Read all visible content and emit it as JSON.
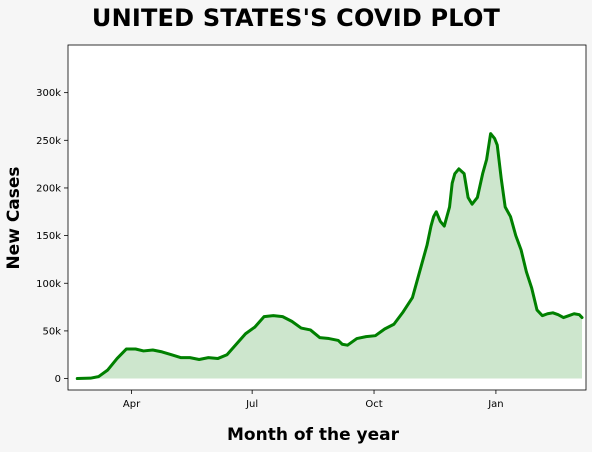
{
  "chart_data": {
    "type": "area",
    "title": "UNITED STATES'S COVID PLOT",
    "xlabel": "Month of the year",
    "ylabel": "New Cases",
    "x_tick_labels": [
      "Apr",
      "Jul",
      "Oct",
      "Jan"
    ],
    "y_tick_labels": [
      "0",
      "50k",
      "100k",
      "150k",
      "200k",
      "250k",
      "300k"
    ],
    "y_ticks": [
      0,
      50000,
      100000,
      150000,
      200000,
      250000,
      300000
    ],
    "ylim": [
      -12000,
      350000
    ],
    "xlim": [
      "2020-02-13",
      "2021-03-10"
    ],
    "x_ticks": [
      "2020-04-01",
      "2020-07-01",
      "2020-10-01",
      "2021-01-01"
    ],
    "grid": false,
    "line_color": "#008000",
    "fill_color": "#cde6cd",
    "series": [
      {
        "x": [
          "2020-02-20",
          "2020-03-01",
          "2020-03-07",
          "2020-03-14",
          "2020-03-21",
          "2020-03-28",
          "2020-04-04",
          "2020-04-10",
          "2020-04-17",
          "2020-04-24",
          "2020-05-01",
          "2020-05-08",
          "2020-05-15",
          "2020-05-22",
          "2020-05-29",
          "2020-06-05",
          "2020-06-12",
          "2020-06-19",
          "2020-06-26",
          "2020-07-03",
          "2020-07-10",
          "2020-07-17",
          "2020-07-24",
          "2020-07-31",
          "2020-08-07",
          "2020-08-14",
          "2020-08-21",
          "2020-08-28",
          "2020-09-04",
          "2020-09-07",
          "2020-09-11",
          "2020-09-18",
          "2020-09-25",
          "2020-10-02",
          "2020-10-09",
          "2020-10-16",
          "2020-10-23",
          "2020-10-30",
          "2020-11-06",
          "2020-11-10",
          "2020-11-13",
          "2020-11-15",
          "2020-11-17",
          "2020-11-20",
          "2020-11-23",
          "2020-11-27",
          "2020-11-29",
          "2020-12-01",
          "2020-12-04",
          "2020-12-08",
          "2020-12-11",
          "2020-12-14",
          "2020-12-18",
          "2020-12-22",
          "2020-12-25",
          "2020-12-28",
          "2020-12-31",
          "2021-01-02",
          "2021-01-05",
          "2021-01-08",
          "2021-01-12",
          "2021-01-16",
          "2021-01-20",
          "2021-01-24",
          "2021-01-28",
          "2021-02-01",
          "2021-02-05",
          "2021-02-09",
          "2021-02-13",
          "2021-02-17",
          "2021-02-21",
          "2021-02-25",
          "2021-03-01",
          "2021-03-05",
          "2021-03-07"
        ],
        "values": [
          0,
          400,
          2000,
          9000,
          21000,
          31000,
          31000,
          29000,
          30000,
          28000,
          25000,
          22000,
          22000,
          20000,
          22000,
          21000,
          25000,
          36000,
          47000,
          54000,
          65000,
          66000,
          65000,
          60000,
          53000,
          51000,
          43000,
          42000,
          40000,
          36000,
          35000,
          42000,
          44000,
          45000,
          52000,
          57000,
          70000,
          85000,
          120000,
          140000,
          160000,
          170000,
          175000,
          165000,
          160000,
          180000,
          205000,
          215000,
          220000,
          215000,
          190000,
          183000,
          190000,
          215000,
          230000,
          257000,
          252000,
          245000,
          210000,
          180000,
          170000,
          150000,
          135000,
          112000,
          95000,
          72000,
          66000,
          68000,
          69000,
          67000,
          64000,
          66000,
          68000,
          67000,
          64000
        ]
      }
    ]
  }
}
